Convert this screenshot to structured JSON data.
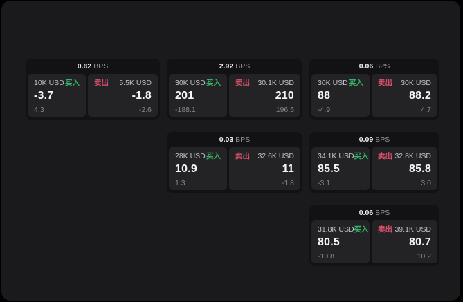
{
  "theme": {
    "outer_bg": "#000000",
    "panel_bg": "#1a1a1c",
    "card_bg": "#121214",
    "tile_bg": "#232326",
    "buy_color": "#35b36a",
    "sell_color": "#dd4f6c",
    "value_color": "#f5f5f6",
    "muted_color": "#88888c"
  },
  "labels": {
    "bps_unit": "BPS",
    "buy": "买入",
    "sell": "卖出"
  },
  "cards": [
    {
      "bps": "0.62",
      "buy": {
        "size": "10K USD",
        "value": "-3.7",
        "delta": "4.3"
      },
      "sell": {
        "size": "5.5K USD",
        "value": "-1.8",
        "delta": "-2.6"
      }
    },
    {
      "bps": "2.92",
      "buy": {
        "size": "30K USD",
        "value": "201",
        "delta": "-188.1"
      },
      "sell": {
        "size": "30.1K USD",
        "value": "210",
        "delta": "196.5"
      }
    },
    {
      "bps": "0.06",
      "buy": {
        "size": "30K USD",
        "value": "88",
        "delta": "-4.9"
      },
      "sell": {
        "size": "30K USD",
        "value": "88.2",
        "delta": "4.7"
      }
    },
    {
      "bps": "0.03",
      "buy": {
        "size": "28K USD",
        "value": "10.9",
        "delta": "1.3"
      },
      "sell": {
        "size": "32.6K USD",
        "value": "11",
        "delta": "-1.8"
      }
    },
    {
      "bps": "0.09",
      "buy": {
        "size": "34.1K USD",
        "value": "85.5",
        "delta": "-3.1"
      },
      "sell": {
        "size": "32.8K USD",
        "value": "85.8",
        "delta": "3.0"
      }
    },
    {
      "bps": "0.06",
      "buy": {
        "size": "31.8K USD",
        "value": "80.5",
        "delta": "-10.8"
      },
      "sell": {
        "size": "39.1K USD",
        "value": "80.7",
        "delta": "10.2"
      }
    }
  ]
}
